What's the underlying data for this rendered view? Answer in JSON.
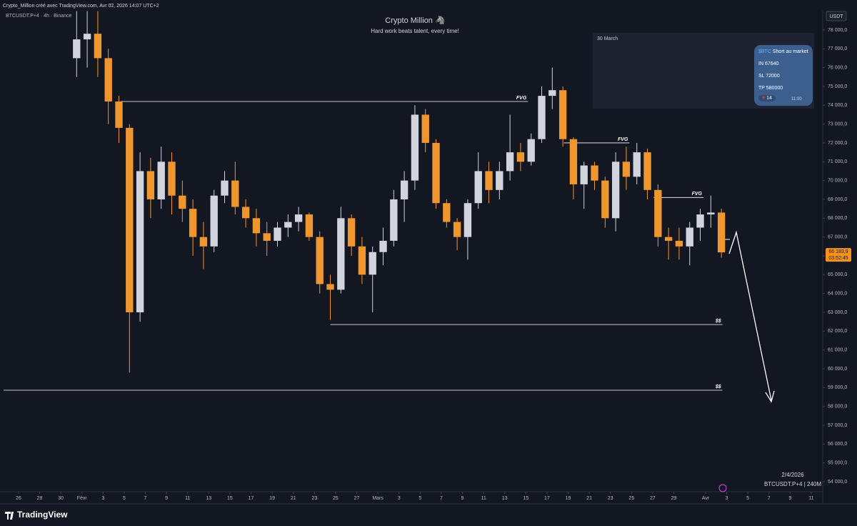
{
  "header": {
    "credit": "Crypto_Million créé avec TradingView.com, Avr 02, 2026 14:07 UTC+2",
    "symbol": "BTCUSDT.P+4 · 4h · Binance",
    "currency": "USDT"
  },
  "chart_data": {
    "type": "candlestick",
    "title": "Crypto Million 🦓",
    "subtitle": "Hard work beats talent, every time!",
    "up_color": "#d1d4dc",
    "down_color": "#f0962e",
    "grid": false,
    "x": [
      5.5,
      6.5,
      7.5,
      8.5,
      9.5,
      10.5,
      11.5,
      12.5,
      13.5,
      14.5,
      15.5,
      16.5,
      17.5,
      18.5,
      19.5,
      20.5,
      21.5,
      22.5,
      23.5,
      24.5,
      25.5,
      26.5,
      27.5,
      28.5,
      29.5,
      30.5,
      31.5,
      32.5,
      33.5,
      34.5,
      35.5,
      36.5,
      37.5,
      38.5,
      39.5,
      40.5,
      41.5,
      42.5,
      43.5,
      44.5,
      45.5,
      46.5,
      47.5,
      48.5,
      49.5,
      50.5,
      51.5,
      52.5,
      53.5,
      54.5,
      55.5,
      56.5,
      57.5,
      58.5,
      59.5,
      60.5,
      61.5,
      62.5,
      63.5,
      64.5,
      65.5,
      66.5
    ],
    "open": [
      76500,
      77500,
      77800,
      76500,
      74200,
      72800,
      63000,
      70500,
      69000,
      71000,
      69200,
      68500,
      67000,
      66500,
      69200,
      70000,
      68600,
      68000,
      67200,
      66800,
      67500,
      67800,
      68200,
      67000,
      64500,
      64200,
      68000,
      66500,
      65000,
      66200,
      66800,
      69000,
      70000,
      73500,
      72000,
      68800,
      67800,
      67000,
      68800,
      70500,
      69500,
      70500,
      71500,
      71000,
      72200,
      74500,
      74800,
      72200,
      69800,
      70800,
      70000,
      68000,
      71000,
      70200,
      71500,
      69500,
      67000,
      66800,
      66500,
      67500,
      68200,
      68300
    ],
    "high": [
      79000,
      79000,
      79000,
      77000,
      74500,
      73000,
      71500,
      71200,
      71800,
      71500,
      70000,
      69000,
      67800,
      69500,
      70500,
      71000,
      69000,
      68500,
      67800,
      67800,
      68200,
      68600,
      68300,
      67300,
      65000,
      68600,
      68200,
      67000,
      66500,
      67500,
      69500,
      70500,
      74000,
      73800,
      72200,
      69000,
      68000,
      69000,
      71500,
      71000,
      71000,
      73500,
      72000,
      72500,
      75000,
      76000,
      75000,
      72300,
      71000,
      71000,
      70200,
      71500,
      71800,
      72000,
      71700,
      69800,
      67500,
      67500,
      67800,
      68500,
      69200,
      68500
    ],
    "low": [
      75500,
      76000,
      75500,
      73000,
      72000,
      59800,
      62500,
      68000,
      68500,
      68200,
      67800,
      66000,
      65300,
      66200,
      68800,
      68200,
      67500,
      66500,
      66000,
      66500,
      67000,
      67300,
      66800,
      64000,
      62600,
      64000,
      66000,
      64500,
      63000,
      65500,
      66500,
      67800,
      69500,
      71500,
      68500,
      67500,
      66300,
      65800,
      68500,
      68800,
      69000,
      70000,
      70500,
      70800,
      72000,
      73800,
      71800,
      69000,
      68500,
      69500,
      67500,
      67300,
      69500,
      69800,
      69000,
      66500,
      65800,
      65800,
      65500,
      66800,
      67500,
      65900
    ],
    "close": [
      77500,
      77800,
      76500,
      74200,
      72800,
      63000,
      70500,
      69000,
      71000,
      69200,
      68500,
      67000,
      66500,
      69200,
      70000,
      68600,
      68000,
      67200,
      66800,
      67500,
      67800,
      68200,
      67000,
      64500,
      64200,
      68000,
      66500,
      65000,
      66200,
      66800,
      69000,
      70000,
      73500,
      72000,
      68800,
      67800,
      67000,
      68800,
      70500,
      69500,
      70500,
      71500,
      71000,
      72200,
      74500,
      74800,
      72200,
      69800,
      70800,
      70000,
      68000,
      71000,
      70200,
      71500,
      69500,
      67000,
      66800,
      66500,
      67500,
      68200,
      68300,
      66183.9
    ],
    "xlim": [
      -1.75,
      75.95
    ],
    "ylim": [
      53470,
      79060
    ],
    "xticks": [
      {
        "value": 0,
        "label": "26"
      },
      {
        "value": 2,
        "label": "28"
      },
      {
        "value": 4,
        "label": "30"
      },
      {
        "value": 6,
        "label": "Févr"
      },
      {
        "value": 8,
        "label": "3"
      },
      {
        "value": 10,
        "label": "5"
      },
      {
        "value": 12,
        "label": "7"
      },
      {
        "value": 14,
        "label": "9"
      },
      {
        "value": 16,
        "label": "11"
      },
      {
        "value": 18,
        "label": "13"
      },
      {
        "value": 20,
        "label": "15"
      },
      {
        "value": 22,
        "label": "17"
      },
      {
        "value": 24,
        "label": "19"
      },
      {
        "value": 26,
        "label": "21"
      },
      {
        "value": 28,
        "label": "23"
      },
      {
        "value": 30,
        "label": "25"
      },
      {
        "value": 32,
        "label": "27"
      },
      {
        "value": 34,
        "label": "Mars"
      },
      {
        "value": 36,
        "label": "3"
      },
      {
        "value": 38,
        "label": "5"
      },
      {
        "value": 40,
        "label": "7"
      },
      {
        "value": 42,
        "label": "9"
      },
      {
        "value": 44,
        "label": "11"
      },
      {
        "value": 46,
        "label": "13"
      },
      {
        "value": 48,
        "label": "15"
      },
      {
        "value": 50,
        "label": "17"
      },
      {
        "value": 52,
        "label": "19"
      },
      {
        "value": 54,
        "label": "21"
      },
      {
        "value": 56,
        "label": "23"
      },
      {
        "value": 58,
        "label": "25"
      },
      {
        "value": 60,
        "label": "27"
      },
      {
        "value": 62,
        "label": "29"
      },
      {
        "value": 65,
        "label": "Avr"
      },
      {
        "value": 67,
        "label": "3"
      },
      {
        "value": 69,
        "label": "5"
      },
      {
        "value": 71,
        "label": "7"
      },
      {
        "value": 73,
        "label": "9"
      },
      {
        "value": 75,
        "label": "11"
      }
    ],
    "yticks": [
      {
        "value": 54000,
        "label": "54 000,0"
      },
      {
        "value": 55000,
        "label": "55 000,0"
      },
      {
        "value": 56000,
        "label": "56 000,0"
      },
      {
        "value": 57000,
        "label": "57 000,0"
      },
      {
        "value": 58000,
        "label": "58 000,0"
      },
      {
        "value": 59000,
        "label": "59 000,0"
      },
      {
        "value": 60000,
        "label": "60 000,0"
      },
      {
        "value": 61000,
        "label": "61 000,0"
      },
      {
        "value": 62000,
        "label": "62 000,0"
      },
      {
        "value": 63000,
        "label": "63 000,0"
      },
      {
        "value": 64000,
        "label": "64 000,0"
      },
      {
        "value": 65000,
        "label": "65 000,0"
      },
      {
        "value": 66000,
        "label": "66 000,0"
      },
      {
        "value": 67000,
        "label": "67 000,0"
      },
      {
        "value": 68000,
        "label": "68 000,0"
      },
      {
        "value": 69000,
        "label": "69 000,0"
      },
      {
        "value": 70000,
        "label": "70 000,0"
      },
      {
        "value": 71000,
        "label": "71 000,0"
      },
      {
        "value": 72000,
        "label": "72 000,0"
      },
      {
        "value": 73000,
        "label": "73 000,0"
      },
      {
        "value": 74000,
        "label": "74 000,0"
      },
      {
        "value": 75000,
        "label": "75 000,0"
      },
      {
        "value": 76000,
        "label": "76 000,0"
      },
      {
        "value": 77000,
        "label": "77 000,0"
      },
      {
        "value": 78000,
        "label": "78 000,0"
      }
    ],
    "last_price": {
      "value": 66183.9,
      "label": "66 183,9",
      "countdown": "03:52:45",
      "color": "#f7931a"
    },
    "levels": [
      {
        "label": "FVG",
        "value": 74200,
        "x": [
          9.7,
          48.2
        ]
      },
      {
        "label": "FVG",
        "value": 72000,
        "x": [
          51.6,
          57.8
        ]
      },
      {
        "label": "FVG",
        "value": 69100,
        "x": [
          60.1,
          64.8
        ]
      },
      {
        "label": "$$",
        "value": 62350,
        "x": [
          29.5,
          66.6
        ]
      },
      {
        "label": "$$",
        "value": 58860,
        "x": [
          -1.4,
          66.6
        ]
      }
    ]
  },
  "message": {
    "date": "30 March",
    "ticker": "$BTC",
    "text": "Short au market",
    "entry": "IN 67640",
    "stop": "SL 72000",
    "target": "TP 580000",
    "reaction": "14",
    "time": "11:00"
  },
  "footer": {
    "date": "2/4/2026",
    "info": "BTCUSDT.P+4 | 240M",
    "brand": "TradingView"
  }
}
